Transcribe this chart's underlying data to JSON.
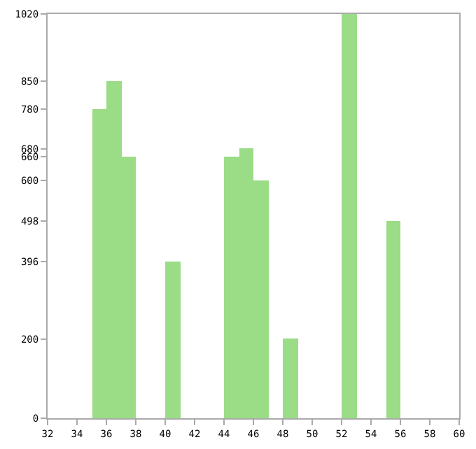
{
  "chart_data": {
    "type": "histogram",
    "bins": [
      32,
      33,
      34,
      35,
      36,
      37,
      38,
      39,
      40,
      41,
      42,
      43,
      44,
      45,
      46,
      47,
      48,
      49,
      50,
      51,
      52,
      53,
      54,
      55,
      56,
      57,
      58,
      59,
      60
    ],
    "values": [
      0,
      0,
      0,
      780,
      850,
      660,
      0,
      0,
      396,
      0,
      0,
      0,
      660,
      680,
      600,
      0,
      200,
      0,
      0,
      0,
      1020,
      0,
      0,
      498,
      0,
      0,
      0,
      0
    ],
    "color": "#9bdc87",
    "xlim": [
      32,
      60
    ],
    "xticks": [
      32,
      34,
      36,
      38,
      40,
      42,
      44,
      46,
      48,
      50,
      52,
      54,
      56,
      58,
      60
    ],
    "ylim": [
      0,
      1020
    ],
    "yticks": [
      0,
      200,
      396,
      498,
      600,
      660,
      680,
      780,
      850,
      1020
    ],
    "grid": false
  }
}
